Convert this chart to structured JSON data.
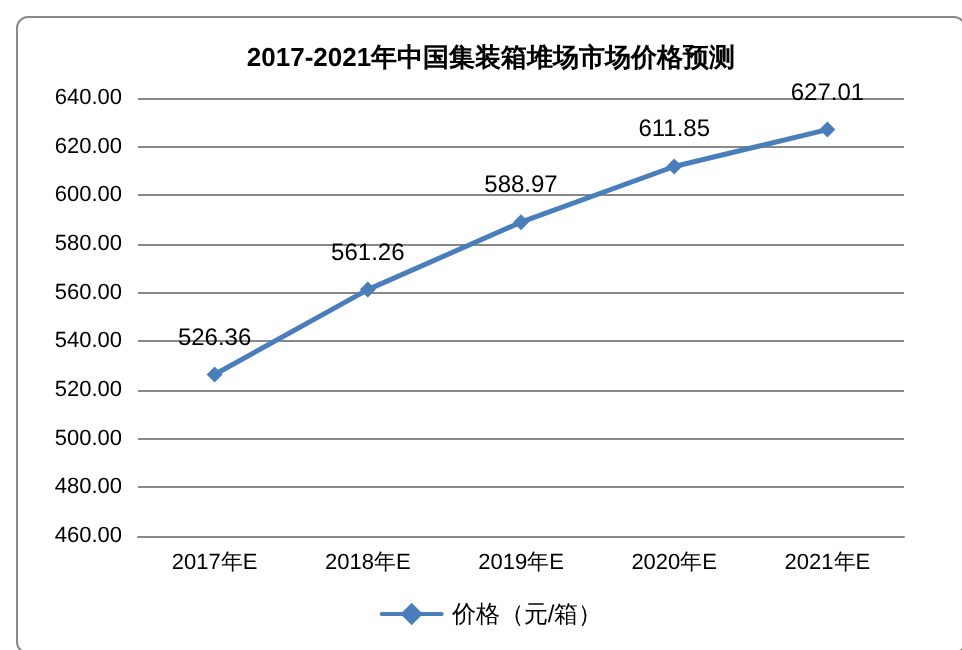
{
  "chart_data": {
    "type": "line",
    "title": "2017-2021年中国集装箱堆场市场价格预测",
    "categories": [
      "2017年E",
      "2018年E",
      "2019年E",
      "2020年E",
      "2021年E"
    ],
    "series": [
      {
        "name": "价格（元/箱）",
        "color": "#4a7ebb",
        "values": [
          526.36,
          561.26,
          588.97,
          611.85,
          627.01
        ]
      }
    ],
    "ylim": [
      460,
      640
    ],
    "yticks": [
      {
        "value": 460,
        "label": "460.00"
      },
      {
        "value": 480,
        "label": "480.00"
      },
      {
        "value": 500,
        "label": "500.00"
      },
      {
        "value": 520,
        "label": "520.00"
      },
      {
        "value": 540,
        "label": "540.00"
      },
      {
        "value": 560,
        "label": "560.00"
      },
      {
        "value": 580,
        "label": "580.00"
      },
      {
        "value": 600,
        "label": "600.00"
      },
      {
        "value": 620,
        "label": "620.00"
      },
      {
        "value": 640,
        "label": "640.00"
      }
    ],
    "grid": "y",
    "legend": "bottom",
    "marker": "diamond",
    "line_style": "solid",
    "data_labels": true
  }
}
